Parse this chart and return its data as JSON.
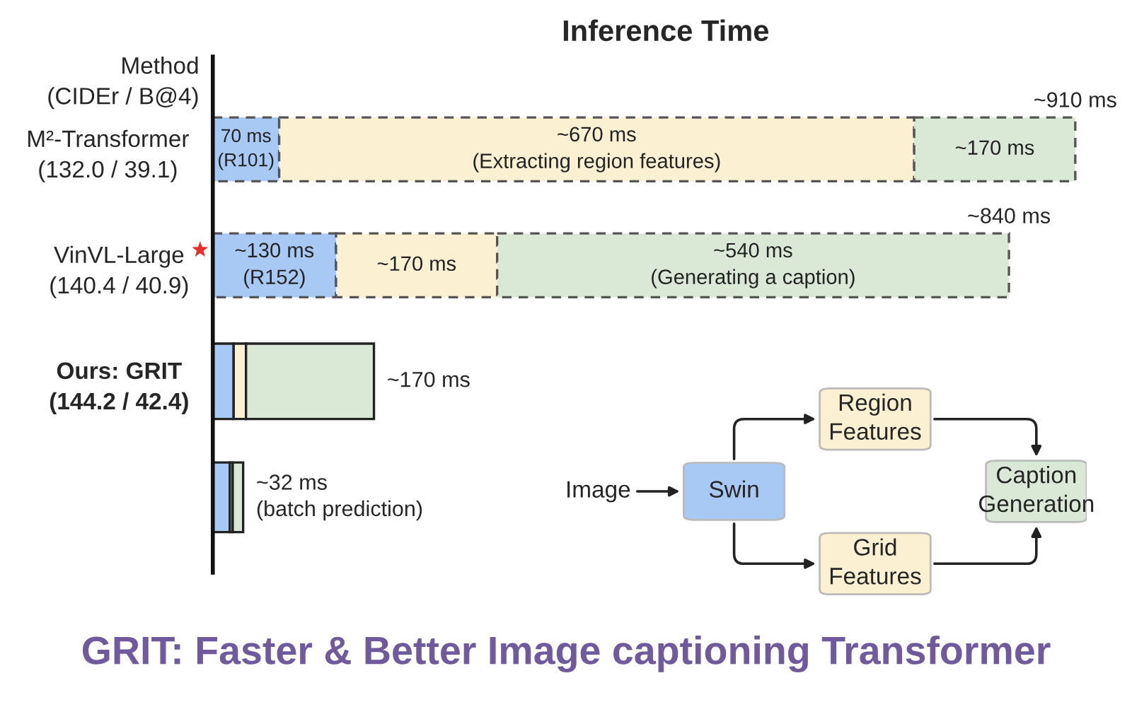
{
  "chart_data": [
    {
      "type": "bar",
      "orientation": "horizontal",
      "stacked": true,
      "title": "Inference Time",
      "ylabel": "Method\n(CIDEr / B@4)",
      "categories": [
        "M²-Transformer\n(132.0 / 39.1)",
        "VinVL-Large\n(140.4 / 40.9)",
        "Ours: GRIT\n(144.2 / 42.4)",
        null
      ],
      "series": [
        {
          "color": "#a9c9f5",
          "values": [
            70,
            130,
            22,
            18
          ],
          "value_labels": [
            "70 ms\n(R101)",
            "~130 ms\n(R152)",
            null,
            null
          ]
        },
        {
          "color": "#fcf0d2",
          "values": [
            670,
            170,
            13,
            3
          ],
          "value_labels": [
            "~670 ms\n(Extracting region features)",
            "~170 ms",
            null,
            null
          ]
        },
        {
          "color": "#dae8d6",
          "values": [
            170,
            540,
            135,
            11
          ],
          "value_labels": [
            "~170 ms",
            "~540 ms\n(Generating a caption)",
            null,
            null
          ]
        }
      ],
      "totals": [
        "~910 ms",
        "~840 ms",
        "~170 ms",
        "~32 ms\n(batch prediction)"
      ],
      "line_style": [
        "dashed",
        "dashed",
        "solid",
        "solid"
      ],
      "legend": false,
      "grid": false,
      "annotations": [
        "GRIT: Faster & Better Image captioning Transformer"
      ]
    },
    {
      "type": "other",
      "annotations": [
        "Image",
        "Swin",
        "Region\nFeatures",
        "Grid\nFeatures",
        "Caption\nGeneration"
      ]
    }
  ]
}
